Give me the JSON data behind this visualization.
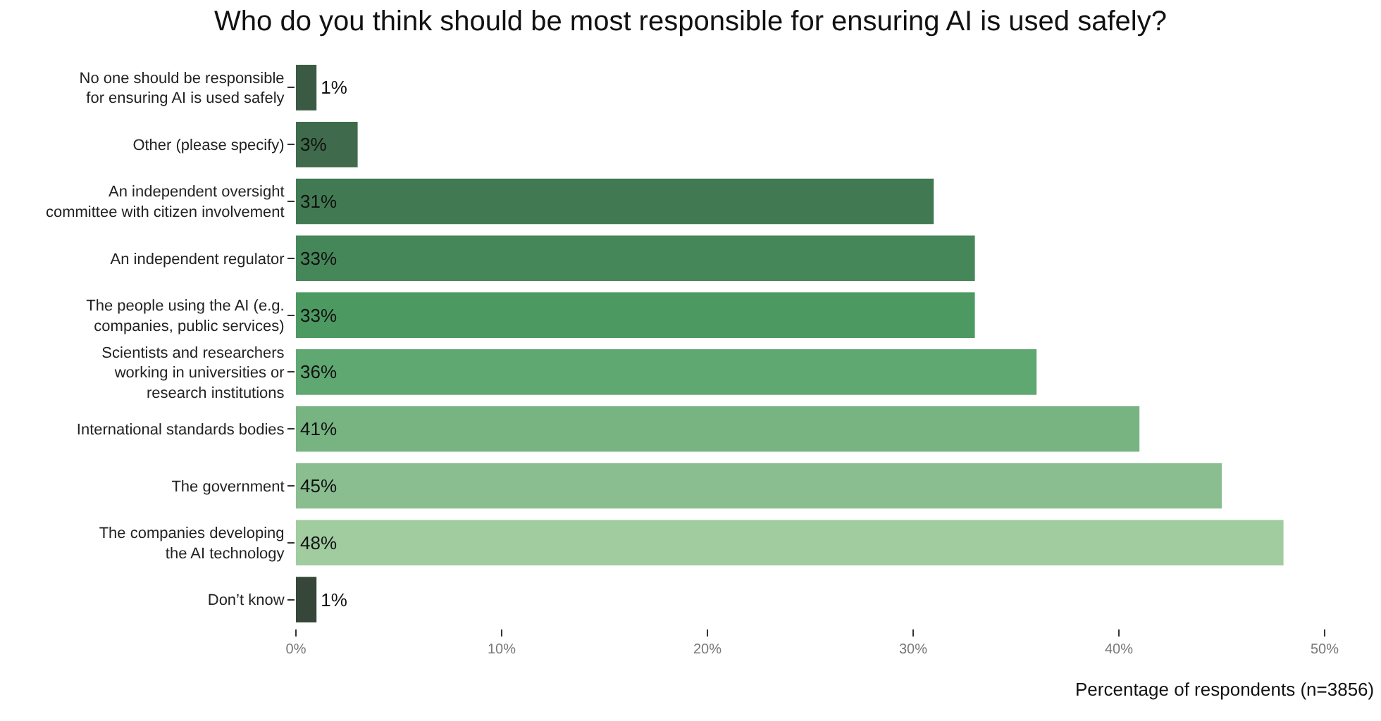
{
  "chart_data": {
    "type": "bar",
    "orientation": "horizontal",
    "title": "Who do you think should be most responsible for ensuring AI is used safely?",
    "xlabel": "Percentage of respondents (n=3856)",
    "categories": [
      "No one should be responsible\nfor ensuring AI is used safely",
      "Other (please specify)",
      "An independent oversight\ncommittee with citizen involvement",
      "An independent regulator",
      "The people using the AI (e.g.\ncompanies, public services)",
      "Scientists and researchers\nworking in universities or\nresearch institutions",
      "International standards bodies",
      "The government",
      "The companies developing\nthe AI technology",
      "Don’t know"
    ],
    "values": [
      1,
      3,
      31,
      33,
      33,
      36,
      41,
      45,
      48,
      1
    ],
    "value_labels": [
      "1%",
      "3%",
      "31%",
      "33%",
      "33%",
      "36%",
      "41%",
      "45%",
      "48%",
      "1%"
    ],
    "colors": [
      "#3b5a44",
      "#3f6b4c",
      "#417a52",
      "#46875a",
      "#4c9a62",
      "#5fa872",
      "#77b482",
      "#8abe90",
      "#a0cca0",
      "#36473a"
    ],
    "xlim": [
      0,
      50
    ],
    "xticks": [
      {
        "value": 0,
        "label": "0%"
      },
      {
        "value": 10,
        "label": "10%"
      },
      {
        "value": 20,
        "label": "20%"
      },
      {
        "value": 30,
        "label": "30%"
      },
      {
        "value": 40,
        "label": "40%"
      },
      {
        "value": 50,
        "label": "50%"
      }
    ],
    "legend": false
  }
}
